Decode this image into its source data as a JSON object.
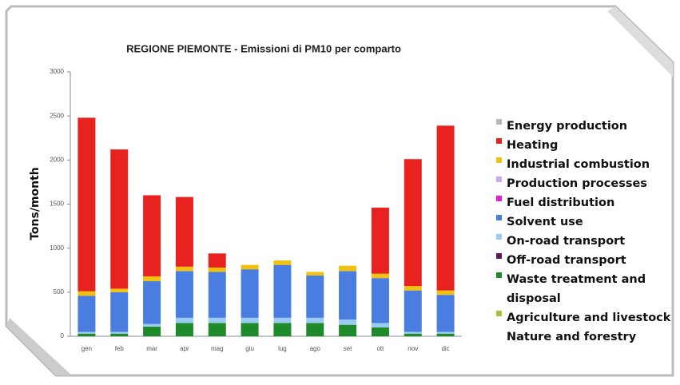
{
  "chart_data": {
    "type": "bar",
    "stacked": true,
    "title": "REGIONE PIEMONTE - Emissioni di PM10 per comparto",
    "y_label": "Tons/month",
    "categories": [
      "gen",
      "feb",
      "mar",
      "apr",
      "mag",
      "giu",
      "lug",
      "ago",
      "set",
      "ott",
      "nov",
      "dic"
    ],
    "ylim": [
      0,
      3000
    ],
    "yticks": [
      0,
      500,
      1000,
      1500,
      2000,
      2500,
      3000
    ],
    "grid": false,
    "series": [
      {
        "name": "Energy production",
        "color": "#b8b8b8",
        "values": [
          0,
          0,
          0,
          0,
          0,
          0,
          0,
          0,
          0,
          0,
          0,
          0
        ]
      },
      {
        "name": "Heating",
        "color": "#e8231f",
        "values": [
          1970,
          1580,
          920,
          790,
          160,
          0,
          0,
          0,
          0,
          750,
          1440,
          1870
        ]
      },
      {
        "name": "Industrial combustion",
        "color": "#f2c10f",
        "values": [
          50,
          40,
          55,
          50,
          50,
          50,
          50,
          40,
          60,
          50,
          50,
          50
        ]
      },
      {
        "name": "Production processes",
        "color": "#c8a8e8",
        "values": [
          0,
          0,
          0,
          0,
          0,
          0,
          0,
          0,
          0,
          0,
          0,
          0
        ]
      },
      {
        "name": "Fuel distribution",
        "color": "#e020d0",
        "values": [
          0,
          0,
          0,
          0,
          0,
          0,
          0,
          0,
          0,
          0,
          0,
          0
        ]
      },
      {
        "name": "Solvent use",
        "color": "#4a7de0",
        "values": [
          410,
          450,
          485,
          530,
          520,
          550,
          600,
          480,
          550,
          510,
          470,
          420
        ]
      },
      {
        "name": "On-road transport",
        "color": "#9ccaf2",
        "values": [
          20,
          20,
          30,
          60,
          60,
          60,
          60,
          60,
          60,
          50,
          20,
          20
        ]
      },
      {
        "name": "Off-road transport",
        "color": "#5a1a5a",
        "values": [
          0,
          0,
          0,
          0,
          0,
          0,
          0,
          0,
          0,
          0,
          0,
          0
        ]
      },
      {
        "name": "Waste treatment and disposal",
        "color": "#1e8a2a",
        "values": [
          30,
          30,
          110,
          150,
          150,
          150,
          150,
          150,
          130,
          100,
          30,
          30
        ]
      },
      {
        "name": "Agriculture and livestock",
        "color": "#9cc83a",
        "values": [
          0,
          0,
          0,
          0,
          0,
          0,
          0,
          0,
          0,
          0,
          0,
          0
        ]
      },
      {
        "name": "Nature and forestry",
        "color": null,
        "values": [
          0,
          0,
          0,
          0,
          0,
          0,
          0,
          0,
          0,
          0,
          0,
          0
        ]
      }
    ],
    "stack_order": [
      8,
      9,
      6,
      5,
      2,
      1
    ]
  }
}
